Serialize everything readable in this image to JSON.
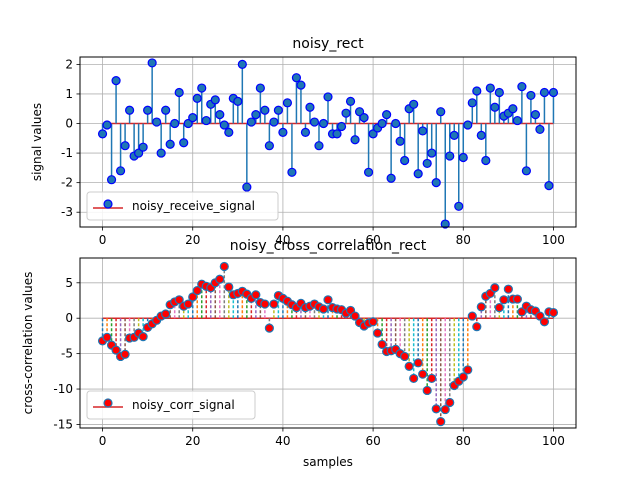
{
  "chart_data": [
    {
      "type": "stem",
      "title": "noisy_rect",
      "xlabel": "",
      "ylabel": "signal values",
      "xlim": [
        -5,
        105
      ],
      "ylim": [
        -3.5,
        2.25
      ],
      "xticks": [
        0,
        20,
        40,
        60,
        80,
        100
      ],
      "yticks": [
        -3,
        -2,
        -1,
        0,
        1,
        2
      ],
      "grid": true,
      "legend": "lower-left",
      "series": [
        {
          "name": "noisy_receive_signal",
          "x": [
            0,
            1,
            2,
            3,
            4,
            5,
            6,
            7,
            8,
            9,
            10,
            11,
            12,
            13,
            14,
            15,
            16,
            17,
            18,
            19,
            20,
            21,
            22,
            23,
            24,
            25,
            26,
            27,
            28,
            29,
            30,
            31,
            32,
            33,
            34,
            35,
            36,
            37,
            38,
            39,
            40,
            41,
            42,
            43,
            44,
            45,
            46,
            47,
            48,
            49,
            50,
            51,
            52,
            53,
            54,
            55,
            56,
            57,
            58,
            59,
            60,
            61,
            62,
            63,
            64,
            65,
            66,
            67,
            68,
            69,
            70,
            71,
            72,
            73,
            74,
            75,
            76,
            77,
            78,
            79,
            80,
            81,
            82,
            83,
            84,
            85,
            86,
            87,
            88,
            89,
            90,
            91,
            92,
            93,
            94,
            95,
            96,
            97,
            98,
            99,
            100
          ],
          "values": [
            -0.35,
            -0.05,
            -1.9,
            1.45,
            -1.6,
            -0.75,
            0.45,
            -1.1,
            -1.0,
            -0.8,
            0.45,
            2.05,
            0.05,
            -1.0,
            0.45,
            -0.7,
            0.0,
            1.05,
            -0.65,
            0.0,
            0.2,
            0.85,
            1.2,
            0.1,
            0.65,
            0.8,
            0.3,
            -0.05,
            -0.3,
            0.85,
            0.75,
            2.0,
            -2.15,
            0.05,
            0.3,
            1.2,
            0.45,
            -0.75,
            0.05,
            0.45,
            -0.3,
            0.7,
            -1.65,
            1.55,
            1.3,
            -0.3,
            0.55,
            0.05,
            -0.75,
            0.0,
            0.9,
            -0.35,
            -0.35,
            -0.1,
            0.35,
            0.75,
            -0.55,
            0.4,
            0.2,
            -1.65,
            -0.35,
            -0.15,
            0.0,
            0.3,
            -1.85,
            0.0,
            -0.6,
            -1.25,
            0.5,
            0.65,
            -1.7,
            -0.25,
            -1.35,
            -1.0,
            -2.0,
            0.4,
            -3.4,
            -1.1,
            -0.4,
            -2.8,
            -1.15,
            -0.05,
            0.7,
            1.1,
            -0.4,
            -1.25,
            1.2,
            0.55,
            1.05,
            0.25,
            0.35,
            0.5,
            0.1,
            1.25,
            -1.6,
            0.95,
            0.3,
            -0.2,
            1.05,
            -2.1,
            1.05
          ]
        }
      ]
    },
    {
      "type": "stem",
      "title": "noisy_cross_correlation_rect",
      "xlabel": "samples",
      "ylabel": "cross-correlation values",
      "xlim": [
        -5,
        105
      ],
      "ylim": [
        -15.5,
        8.5
      ],
      "xticks": [
        0,
        20,
        40,
        60,
        80,
        100
      ],
      "yticks": [
        -15,
        -10,
        -5,
        0,
        5
      ],
      "grid": true,
      "legend": "lower-left",
      "series": [
        {
          "name": "noisy_corr_signal",
          "x": [
            0,
            1,
            2,
            3,
            4,
            5,
            6,
            7,
            8,
            9,
            10,
            11,
            12,
            13,
            14,
            15,
            16,
            17,
            18,
            19,
            20,
            21,
            22,
            23,
            24,
            25,
            26,
            27,
            28,
            29,
            30,
            31,
            32,
            33,
            34,
            35,
            36,
            37,
            38,
            39,
            40,
            41,
            42,
            43,
            44,
            45,
            46,
            47,
            48,
            49,
            50,
            51,
            52,
            53,
            54,
            55,
            56,
            57,
            58,
            59,
            60,
            61,
            62,
            63,
            64,
            65,
            66,
            67,
            68,
            69,
            70,
            71,
            72,
            73,
            74,
            75,
            76,
            77,
            78,
            79,
            80,
            81,
            82,
            83,
            84,
            85,
            86,
            87,
            88,
            89,
            90,
            91,
            92,
            93,
            94,
            95,
            96,
            97,
            98,
            99,
            100
          ],
          "values": [
            -3.2,
            -2.7,
            -3.8,
            -4.5,
            -5.4,
            -5.1,
            -2.8,
            -2.7,
            -2.1,
            -2.6,
            -1.3,
            -0.8,
            -0.3,
            0.3,
            0.6,
            1.9,
            2.3,
            2.6,
            1.7,
            2.0,
            3.0,
            3.9,
            4.8,
            4.5,
            4.3,
            5.0,
            5.5,
            7.3,
            4.4,
            3.3,
            3.5,
            3.8,
            3.4,
            2.8,
            3.3,
            2.2,
            2.0,
            -1.4,
            2.0,
            3.2,
            2.8,
            2.4,
            1.9,
            1.5,
            2.1,
            1.5,
            1.7,
            2.0,
            1.6,
            1.3,
            2.6,
            1.5,
            1.3,
            1.2,
            0.7,
            1.1,
            0.3,
            -0.6,
            -1.1,
            -0.7,
            -0.5,
            -2.1,
            -3.7,
            -4.7,
            -4.6,
            -4.4,
            -5.0,
            -5.4,
            -6.8,
            -8.5,
            -6.3,
            -7.9,
            -10.2,
            -8.5,
            -12.8,
            -14.6,
            -12.9,
            -11.9,
            -9.5,
            -8.9,
            -8.3,
            -7.3,
            0.3,
            -1.2,
            1.6,
            3.1,
            3.5,
            4.3,
            1.5,
            2.6,
            4.1,
            2.7,
            2.7,
            0.9,
            1.7,
            1.2,
            1.0,
            0.3,
            -0.5,
            0.9,
            0.8
          ]
        }
      ]
    }
  ],
  "colors": {
    "stem_line": "#1f77b4",
    "baseline": "#d62728",
    "marker_top_face": "#1f77b4",
    "marker_top_edge": "#0000ff",
    "marker_bottom_face": "#ff0000",
    "marker_bottom_edge": "#1f77b4",
    "grid": "#b0b0b0",
    "stem_palette": [
      "#1f77b4",
      "#ff7f0e",
      "#2ca02c",
      "#d62728",
      "#9467bd",
      "#8c564b",
      "#e377c2",
      "#7f7f7f",
      "#bcbd22",
      "#17becf"
    ]
  }
}
